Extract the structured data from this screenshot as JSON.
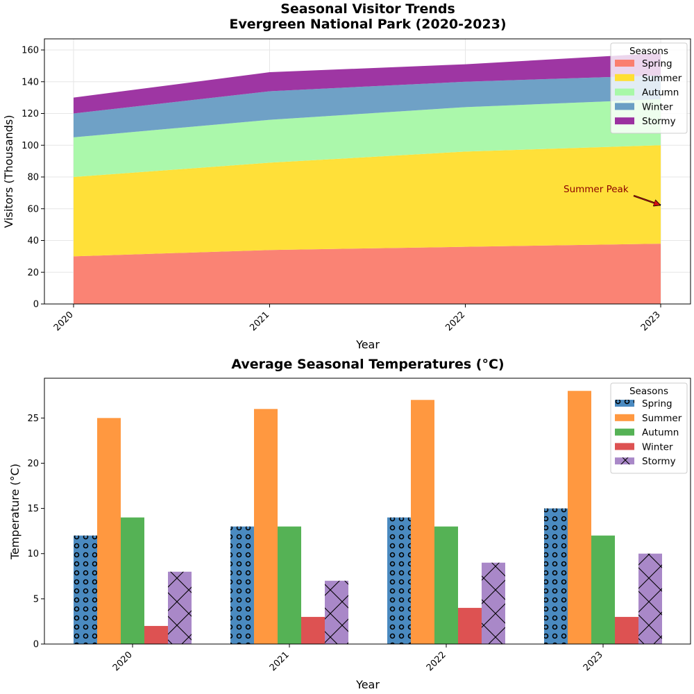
{
  "chart_data": [
    {
      "type": "area",
      "stacked": true,
      "title": "Seasonal Visitor Trends\nEvergreen National Park (2020-2023)",
      "xlabel": "Year",
      "ylabel": "Visitors (Thousands)",
      "x": [
        "2020",
        "2021",
        "2022",
        "2023"
      ],
      "ylim": [
        0,
        167
      ],
      "yticks": [
        0,
        20,
        40,
        60,
        80,
        100,
        120,
        140,
        160
      ],
      "grid": true,
      "legend": {
        "title": "Seasons",
        "placement": "top-right"
      },
      "series": [
        {
          "name": "Spring",
          "values": [
            30,
            34,
            36,
            38
          ],
          "color": "#fa7f6f"
        },
        {
          "name": "Summer",
          "values": [
            50,
            55,
            60,
            62
          ],
          "color": "#ffdf33"
        },
        {
          "name": "Autumn",
          "values": [
            25,
            27,
            28,
            29
          ],
          "color": "#a8f8a8"
        },
        {
          "name": "Winter",
          "values": [
            15,
            18,
            16,
            15
          ],
          "color": "#6a9ec4"
        },
        {
          "name": "Stormy",
          "values": [
            10,
            12,
            11,
            14
          ],
          "color": "#9b30a0"
        }
      ],
      "annotations": [
        {
          "text": "Summer Peak",
          "x": "2023",
          "y": 62,
          "arrow": true,
          "color": "#8b0000"
        }
      ]
    },
    {
      "type": "bar",
      "title": "Average Seasonal Temperatures (°C)",
      "xlabel": "Year",
      "ylabel": "Temperature (°C)",
      "categories": [
        "2020",
        "2021",
        "2022",
        "2023"
      ],
      "ylim": [
        0,
        29.4
      ],
      "yticks": [
        0,
        5,
        10,
        15,
        20,
        25
      ],
      "grid": false,
      "legend": {
        "title": "Seasons",
        "placement": "top-right"
      },
      "series": [
        {
          "name": "Spring",
          "values": [
            12,
            13,
            14,
            15
          ],
          "color": "#4a8ac0",
          "hatch": "circles"
        },
        {
          "name": "Summer",
          "values": [
            25,
            26,
            27,
            28
          ],
          "color": "#ff9840"
        },
        {
          "name": "Autumn",
          "values": [
            14,
            13,
            13,
            12
          ],
          "color": "#55b255"
        },
        {
          "name": "Winter",
          "values": [
            2,
            3,
            4,
            3
          ],
          "color": "#dd5252"
        },
        {
          "name": "Stormy",
          "values": [
            8,
            7,
            9,
            10
          ],
          "color": "#a988c8",
          "hatch": "cross"
        }
      ]
    }
  ]
}
